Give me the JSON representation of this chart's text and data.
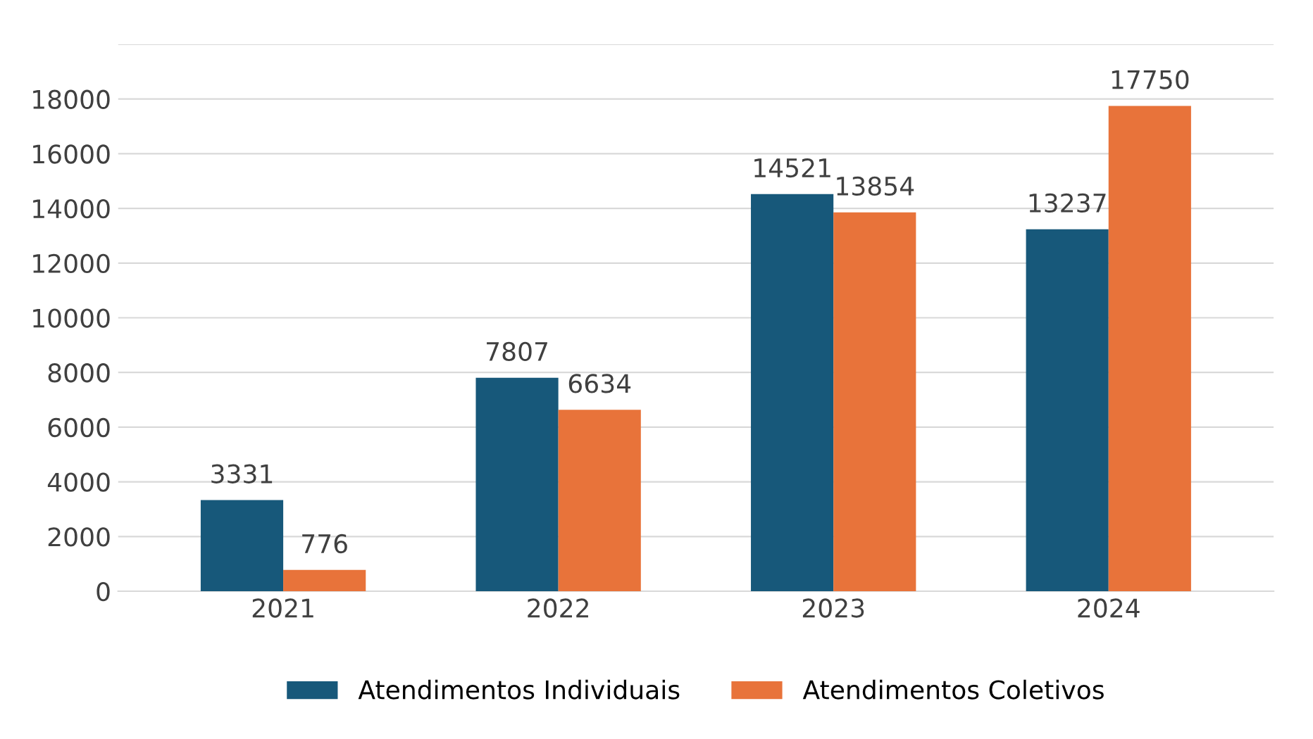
{
  "chart_data": {
    "type": "bar",
    "categories": [
      "2021",
      "2022",
      "2023",
      "2024"
    ],
    "series": [
      {
        "name": "Atendimentos Individuais",
        "color": "#17587a",
        "values": [
          3331,
          7807,
          14521,
          13237
        ]
      },
      {
        "name": "Atendimentos Coletivos",
        "color": "#e8733a",
        "values": [
          776,
          6634,
          13854,
          17750
        ]
      }
    ],
    "ylim": [
      0,
      20000
    ],
    "yticks": [
      0,
      2000,
      4000,
      6000,
      8000,
      10000,
      12000,
      14000,
      16000,
      18000,
      {
        "value": 20000,
        "label": null
      }
    ],
    "grid": "y",
    "legend": "bottom",
    "data_labels": true
  }
}
